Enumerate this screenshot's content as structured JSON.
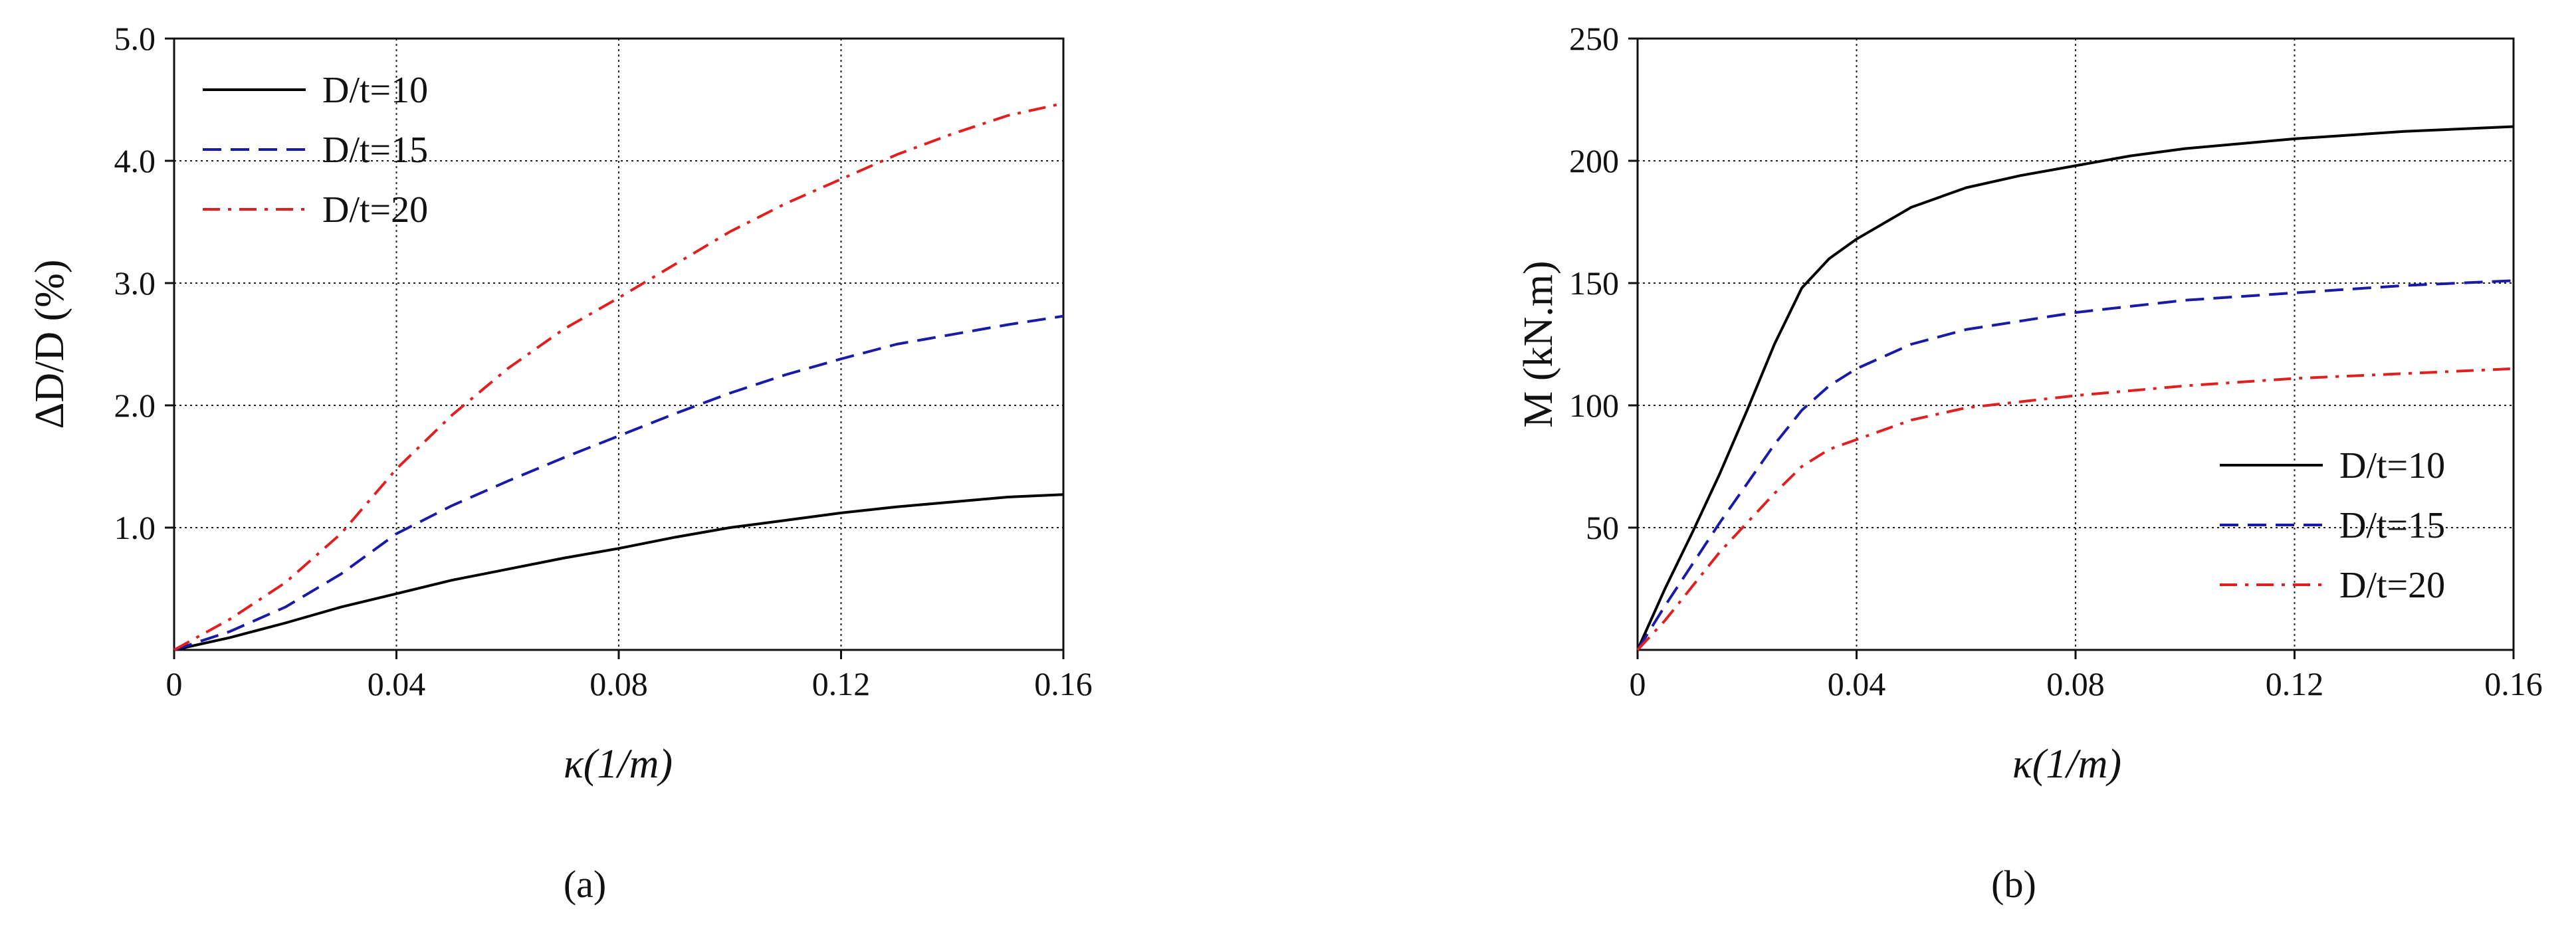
{
  "chart_data": [
    {
      "type": "line",
      "panel_label": "(a)",
      "ylabel": "ΔD/D (%)",
      "xlabel": "κ(1/m)",
      "xlim": [
        0,
        0.16
      ],
      "ylim": [
        0,
        5.0
      ],
      "x_ticks": [
        "0",
        "0.04",
        "0.08",
        "0.12",
        "0.16"
      ],
      "y_ticks": [
        "1.0",
        "2.0",
        "3.0",
        "4.0",
        "5.0"
      ],
      "grid": true,
      "legend_position": "top-left",
      "series": [
        {
          "name": "D/t=10",
          "color": "#000000",
          "dash": "solid",
          "x": [
            0,
            0.01,
            0.02,
            0.03,
            0.04,
            0.05,
            0.06,
            0.07,
            0.08,
            0.09,
            0.1,
            0.11,
            0.12,
            0.13,
            0.14,
            0.15,
            0.16
          ],
          "y": [
            0,
            0.1,
            0.22,
            0.35,
            0.46,
            0.57,
            0.66,
            0.75,
            0.83,
            0.92,
            1.0,
            1.06,
            1.12,
            1.17,
            1.21,
            1.25,
            1.27
          ]
        },
        {
          "name": "D/t=15",
          "color": "#1a1aa8",
          "dash": "dashed",
          "x": [
            0,
            0.01,
            0.02,
            0.03,
            0.04,
            0.05,
            0.06,
            0.07,
            0.08,
            0.09,
            0.1,
            0.11,
            0.12,
            0.13,
            0.14,
            0.15,
            0.16
          ],
          "y": [
            0,
            0.15,
            0.35,
            0.62,
            0.95,
            1.18,
            1.38,
            1.57,
            1.75,
            1.93,
            2.1,
            2.25,
            2.38,
            2.5,
            2.58,
            2.66,
            2.73
          ]
        },
        {
          "name": "D/t=20",
          "color": "#e02020",
          "dash": "dashdot",
          "x": [
            0,
            0.01,
            0.02,
            0.03,
            0.04,
            0.05,
            0.06,
            0.07,
            0.08,
            0.09,
            0.1,
            0.11,
            0.12,
            0.13,
            0.14,
            0.15,
            0.16
          ],
          "y": [
            0,
            0.25,
            0.55,
            0.95,
            1.48,
            1.92,
            2.3,
            2.62,
            2.88,
            3.15,
            3.42,
            3.65,
            3.85,
            4.05,
            4.22,
            4.37,
            4.47
          ]
        }
      ]
    },
    {
      "type": "line",
      "panel_label": "(b)",
      "ylabel": "M (kN.m)",
      "xlabel": "κ(1/m)",
      "xlim": [
        0,
        0.16
      ],
      "ylim": [
        0,
        250
      ],
      "x_ticks": [
        "0",
        "0.04",
        "0.08",
        "0.12",
        "0.16"
      ],
      "y_ticks": [
        "50",
        "100",
        "150",
        "200",
        "250"
      ],
      "grid": true,
      "legend_position": "bottom-right",
      "series": [
        {
          "name": "D/t=10",
          "color": "#000000",
          "dash": "solid",
          "x": [
            0,
            0.005,
            0.01,
            0.015,
            0.02,
            0.025,
            0.03,
            0.035,
            0.04,
            0.05,
            0.06,
            0.07,
            0.08,
            0.09,
            0.1,
            0.12,
            0.14,
            0.16
          ],
          "y": [
            0,
            25,
            48,
            72,
            98,
            125,
            148,
            160,
            168,
            181,
            189,
            194,
            198,
            202,
            205,
            209,
            212,
            214
          ]
        },
        {
          "name": "D/t=15",
          "color": "#1a1aa8",
          "dash": "dashed",
          "x": [
            0,
            0.005,
            0.01,
            0.015,
            0.02,
            0.025,
            0.03,
            0.035,
            0.04,
            0.05,
            0.06,
            0.08,
            0.1,
            0.12,
            0.14,
            0.16
          ],
          "y": [
            0,
            18,
            35,
            52,
            68,
            84,
            98,
            108,
            115,
            125,
            131,
            138,
            143,
            146,
            149,
            151
          ]
        },
        {
          "name": "D/t=20",
          "color": "#e02020",
          "dash": "dashdot",
          "x": [
            0,
            0.005,
            0.01,
            0.015,
            0.02,
            0.025,
            0.03,
            0.035,
            0.04,
            0.05,
            0.06,
            0.08,
            0.1,
            0.12,
            0.14,
            0.16
          ],
          "y": [
            0,
            12,
            26,
            40,
            52,
            64,
            75,
            82,
            86,
            94,
            99,
            104,
            108,
            111,
            113,
            115
          ]
        }
      ]
    }
  ]
}
